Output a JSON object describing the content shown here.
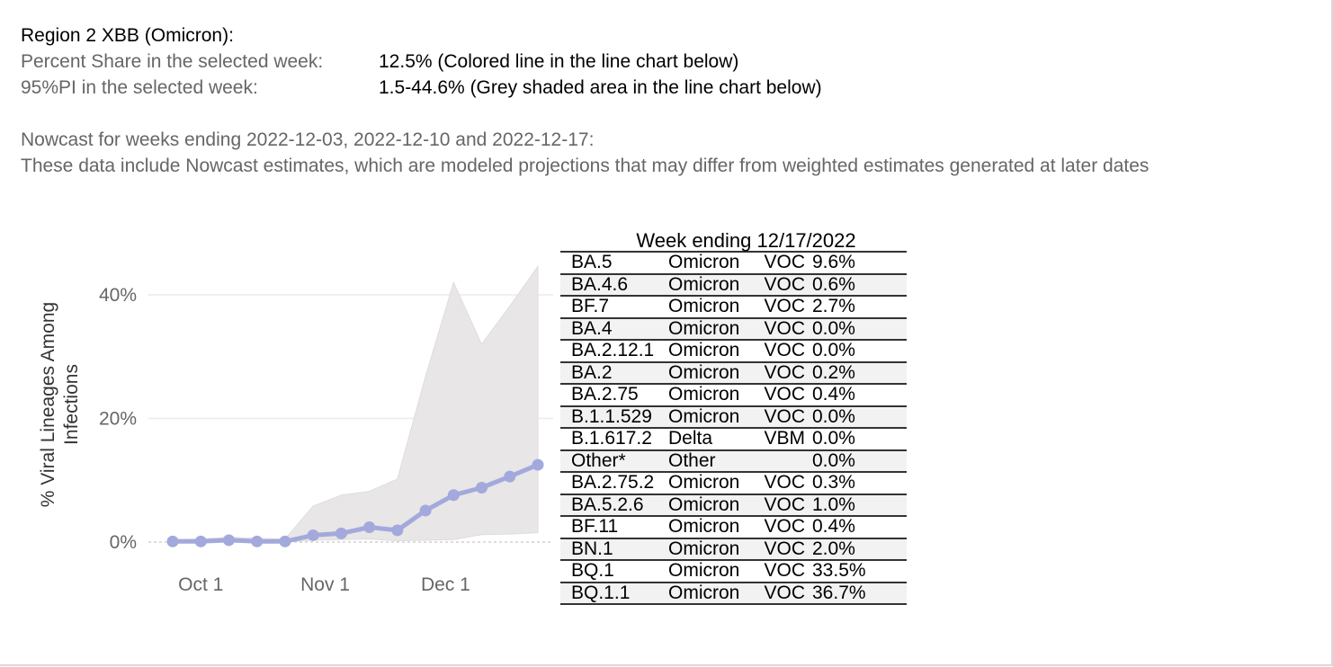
{
  "info": {
    "title": "Region 2  XBB (Omicron):",
    "share_label": "Percent Share in the selected week:",
    "share_value": "12.5%  (Colored line in the line chart below)",
    "pi_label": "95%PI in the selected week:",
    "pi_value": "1.5-44.6% (Grey shaded area in the line chart below)",
    "nowcast_line1": "Nowcast for weeks ending 2022-12-03, 2022-12-10 and 2022-12-17:",
    "nowcast_line2": "These data include Nowcast estimates, which are modeled projections that may differ from weighted estimates generated at later dates"
  },
  "colors": {
    "line": "#a3a9dc",
    "band": "#e8e6e6",
    "grid": "#ececec",
    "axis_text": "#666666"
  },
  "chart_data": {
    "type": "line",
    "ylabel": "% Viral Lineages Among Infections",
    "ylim": [
      -2,
      47
    ],
    "y_ticks": [
      0,
      20,
      40
    ],
    "y_tick_labels": [
      "0%",
      "20%",
      "40%"
    ],
    "x_tick_labels": [
      "Oct 1",
      "Nov 1",
      "Dec 1"
    ],
    "x_tick_dates": [
      "2022-10-01",
      "2022-11-01",
      "2022-12-01"
    ],
    "x_dates": [
      "2022-09-24",
      "2022-10-01",
      "2022-10-08",
      "2022-10-15",
      "2022-10-22",
      "2022-10-29",
      "2022-11-05",
      "2022-11-12",
      "2022-11-19",
      "2022-11-26",
      "2022-12-03",
      "2022-12-10",
      "2022-12-17"
    ],
    "series": [
      {
        "values": [
          0.1,
          0.1,
          0.3,
          0.1,
          0.1,
          1.1,
          1.4,
          2.4,
          1.9,
          5.1,
          7.6,
          8.8,
          10.6
        ]
      }
    ],
    "band_lower": [
      0.0,
      0.0,
      0.0,
      0.0,
      0.0,
      0.3,
      0.4,
      0.5,
      0.2,
      0.3,
      0.4,
      1.2,
      1.3
    ],
    "band_upper": [
      0.4,
      0.5,
      0.8,
      0.6,
      0.5,
      5.8,
      7.6,
      8.2,
      10.2,
      26.8,
      42.0,
      32.0,
      38.2
    ],
    "last_point": {
      "date": "2022-12-24",
      "value": 12.5,
      "band_lower": 1.5,
      "band_upper": 44.6
    }
  },
  "table": {
    "title": "Week ending 12/17/2022",
    "rows": [
      {
        "lineage": "BA.5",
        "who": "Omicron",
        "type": "VOC",
        "share": "9.6%"
      },
      {
        "lineage": "BA.4.6",
        "who": "Omicron",
        "type": "VOC",
        "share": "0.6%"
      },
      {
        "lineage": "BF.7",
        "who": "Omicron",
        "type": "VOC",
        "share": "2.7%"
      },
      {
        "lineage": "BA.4",
        "who": "Omicron",
        "type": "VOC",
        "share": "0.0%"
      },
      {
        "lineage": "BA.2.12.1",
        "who": "Omicron",
        "type": "VOC",
        "share": "0.0%"
      },
      {
        "lineage": "BA.2",
        "who": "Omicron",
        "type": "VOC",
        "share": "0.2%"
      },
      {
        "lineage": "BA.2.75",
        "who": "Omicron",
        "type": "VOC",
        "share": "0.4%"
      },
      {
        "lineage": "B.1.1.529",
        "who": "Omicron",
        "type": "VOC",
        "share": "0.0%"
      },
      {
        "lineage": "B.1.617.2",
        "who": "Delta",
        "type": "VBM",
        "share": "0.0%"
      },
      {
        "lineage": "Other*",
        "who": "Other",
        "type": "",
        "share": "0.0%"
      },
      {
        "lineage": "BA.2.75.2",
        "who": "Omicron",
        "type": "VOC",
        "share": "0.3%"
      },
      {
        "lineage": "BA.5.2.6",
        "who": "Omicron",
        "type": "VOC",
        "share": "1.0%"
      },
      {
        "lineage": "BF.11",
        "who": "Omicron",
        "type": "VOC",
        "share": "0.4%"
      },
      {
        "lineage": "BN.1",
        "who": "Omicron",
        "type": "VOC",
        "share": "2.0%"
      },
      {
        "lineage": "BQ.1",
        "who": "Omicron",
        "type": "VOC",
        "share": "33.5%"
      },
      {
        "lineage": "BQ.1.1",
        "who": "Omicron",
        "type": "VOC",
        "share": "36.7%"
      }
    ]
  }
}
